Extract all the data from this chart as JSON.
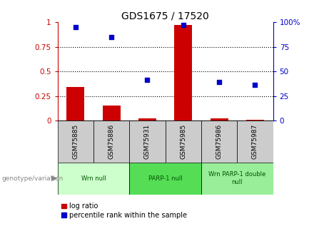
{
  "title": "GDS1675 / 17520",
  "samples": [
    "GSM75885",
    "GSM75886",
    "GSM75931",
    "GSM75985",
    "GSM75986",
    "GSM75987"
  ],
  "log_ratio": [
    0.34,
    0.15,
    0.02,
    0.97,
    0.02,
    0.01
  ],
  "percentile_rank": [
    95,
    85,
    41,
    97,
    39,
    36
  ],
  "group_data": [
    {
      "label": "Wrn null",
      "start": 0,
      "end": 1,
      "color": "#ccffcc"
    },
    {
      "label": "PARP-1 null",
      "start": 2,
      "end": 3,
      "color": "#55dd55"
    },
    {
      "label": "Wrn PARP-1 double\nnull",
      "start": 4,
      "end": 5,
      "color": "#99ee99"
    }
  ],
  "bar_color": "#cc0000",
  "dot_color": "#0000cc",
  "axis_color_left": "#cc0000",
  "axis_color_right": "#0000cc",
  "sample_box_color": "#cccccc",
  "ylim_left": [
    0,
    1.0
  ],
  "ylim_right": [
    0,
    100
  ],
  "yticks_left": [
    0,
    0.25,
    0.5,
    0.75,
    1.0
  ],
  "ytick_labels_left": [
    "0",
    "0.25",
    "0.5",
    "0.75",
    "1"
  ],
  "yticks_right": [
    0,
    25,
    50,
    75,
    100
  ],
  "ytick_labels_right": [
    "0",
    "25",
    "50",
    "75",
    "100%"
  ],
  "legend_items": [
    "log ratio",
    "percentile rank within the sample"
  ],
  "genotype_label": "genotype/variation",
  "bar_width": 0.5,
  "dot_size": 25
}
